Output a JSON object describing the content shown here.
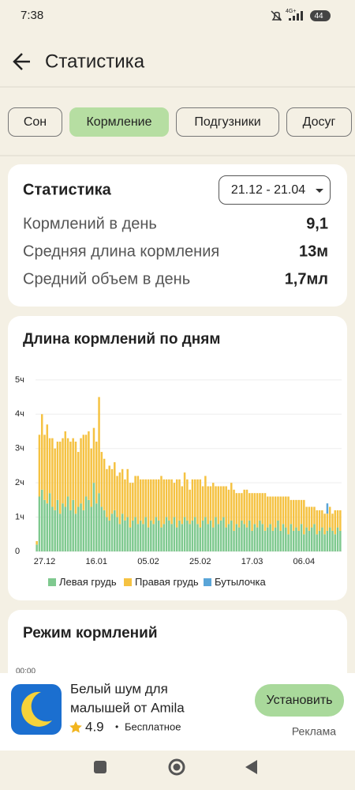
{
  "status_bar": {
    "time": "7:38",
    "network": "4G+",
    "battery": "44"
  },
  "header": {
    "title": "Статистика"
  },
  "tabs": [
    "Сон",
    "Кормление",
    "Подгузники",
    "Досуг"
  ],
  "summary": {
    "title": "Статистика",
    "date_range": "21.12 - 21.04",
    "rows": [
      [
        "Кормлений в день",
        "9,1"
      ],
      [
        "Средняя длина кормления",
        "13м"
      ],
      [
        "Средний объем в день",
        "1,7мл"
      ]
    ]
  },
  "chart_data": {
    "type": "bar",
    "stacked": true,
    "title": "Длина кормлений по дням",
    "categories": [
      null,
      null,
      null,
      "27.12",
      null,
      null,
      null,
      null,
      null,
      null,
      null,
      null,
      null,
      null,
      null,
      null,
      null,
      null,
      null,
      null,
      null,
      null,
      null,
      "16.01",
      null,
      null,
      null,
      null,
      null,
      null,
      null,
      null,
      null,
      null,
      null,
      null,
      null,
      null,
      null,
      null,
      null,
      null,
      null,
      "05.02",
      null,
      null,
      null,
      null,
      null,
      null,
      null,
      null,
      null,
      null,
      null,
      null,
      null,
      null,
      null,
      null,
      null,
      null,
      null,
      "25.02",
      null,
      null,
      null,
      null,
      null,
      null,
      null,
      null,
      null,
      null,
      null,
      null,
      null,
      null,
      null,
      null,
      null,
      null,
      null,
      "17.03",
      null,
      null,
      null,
      null,
      null,
      null,
      null,
      null,
      null,
      null,
      null,
      null,
      null,
      null,
      null,
      null,
      null,
      null,
      null,
      "06.04",
      null,
      null,
      null,
      null,
      null,
      null,
      null,
      null,
      null,
      null,
      null,
      null,
      null,
      null
    ],
    "series": [
      {
        "name": "Левая грудь",
        "color": "#7fc98f",
        "values": [
          0.2,
          1.6,
          1.8,
          1.5,
          1.4,
          1.7,
          1.3,
          1.2,
          1.5,
          1.1,
          1.4,
          1.3,
          1.6,
          1.2,
          1.5,
          1.1,
          1.3,
          1.4,
          1.2,
          1.6,
          1.5,
          1.3,
          2.0,
          1.4,
          1.7,
          1.3,
          1.2,
          1.0,
          0.9,
          1.1,
          1.2,
          1.0,
          0.8,
          1.1,
          0.9,
          1.0,
          0.7,
          0.9,
          1.0,
          0.8,
          0.9,
          0.8,
          1.0,
          0.7,
          0.9,
          0.8,
          1.0,
          0.9,
          0.7,
          0.8,
          1.0,
          0.9,
          0.8,
          1.0,
          0.7,
          0.9,
          0.8,
          1.0,
          0.9,
          0.8,
          0.9,
          1.0,
          0.8,
          0.7,
          0.9,
          1.0,
          0.8,
          0.9,
          0.7,
          1.0,
          0.8,
          0.9,
          1.0,
          0.7,
          0.8,
          0.9,
          0.6,
          0.8,
          0.7,
          0.9,
          0.8,
          0.7,
          0.9,
          0.6,
          0.8,
          0.7,
          0.9,
          0.8,
          0.6,
          0.7,
          0.8,
          0.6,
          0.7,
          0.9,
          0.6,
          0.8,
          0.7,
          0.5,
          0.8,
          0.6,
          0.7,
          0.6,
          0.8,
          0.5,
          0.7,
          0.6,
          0.7,
          0.8,
          0.5,
          0.6,
          0.7,
          0.5,
          0.6,
          0.7,
          0.6,
          0.5,
          0.7,
          0.6
        ]
      },
      {
        "name": "Правая грудь",
        "color": "#f5c242",
        "values": [
          0.1,
          1.8,
          2.2,
          1.9,
          2.3,
          1.6,
          2.0,
          1.8,
          1.7,
          2.1,
          1.9,
          2.2,
          1.7,
          2.0,
          1.8,
          2.1,
          1.6,
          1.9,
          2.2,
          1.8,
          2.0,
          1.7,
          1.6,
          1.8,
          2.8,
          1.6,
          1.5,
          1.4,
          1.6,
          1.3,
          1.4,
          1.2,
          1.5,
          1.3,
          1.2,
          1.4,
          1.3,
          1.1,
          1.2,
          1.4,
          1.2,
          1.3,
          1.1,
          1.4,
          1.2,
          1.3,
          1.1,
          1.2,
          1.5,
          1.3,
          1.1,
          1.2,
          1.3,
          1.0,
          1.4,
          1.2,
          1.1,
          1.3,
          1.2,
          1.0,
          1.2,
          1.1,
          1.3,
          1.4,
          1.0,
          1.2,
          1.1,
          1.0,
          1.3,
          0.9,
          1.1,
          1.0,
          0.9,
          1.2,
          1.0,
          1.1,
          1.2,
          0.9,
          1.0,
          0.8,
          1.0,
          1.1,
          0.8,
          1.1,
          0.9,
          1.0,
          0.8,
          0.9,
          1.1,
          0.9,
          0.8,
          1.0,
          0.9,
          0.7,
          1.0,
          0.8,
          0.9,
          1.1,
          0.7,
          0.9,
          0.8,
          0.9,
          0.7,
          1.0,
          0.6,
          0.7,
          0.6,
          0.5,
          0.7,
          0.6,
          0.5,
          0.6,
          0.5,
          0.6,
          0.5,
          0.7,
          0.5,
          0.6
        ]
      },
      {
        "name": "Бутылочка",
        "color": "#5aa5d8",
        "values": [
          0,
          0,
          0,
          0,
          0,
          0,
          0,
          0,
          0,
          0,
          0,
          0,
          0,
          0,
          0,
          0,
          0,
          0,
          0,
          0,
          0,
          0,
          0,
          0,
          0,
          0,
          0,
          0,
          0,
          0,
          0,
          0,
          0,
          0,
          0,
          0,
          0,
          0,
          0,
          0,
          0,
          0,
          0,
          0,
          0,
          0,
          0,
          0,
          0,
          0,
          0,
          0,
          0,
          0,
          0,
          0,
          0,
          0,
          0,
          0,
          0,
          0,
          0,
          0,
          0,
          0,
          0,
          0,
          0,
          0,
          0,
          0,
          0,
          0,
          0,
          0,
          0,
          0,
          0,
          0,
          0,
          0,
          0,
          0,
          0,
          0,
          0,
          0,
          0,
          0,
          0,
          0,
          0,
          0,
          0,
          0,
          0,
          0,
          0,
          0,
          0,
          0,
          0,
          0,
          0,
          0,
          0,
          0,
          0,
          0,
          0,
          0,
          0.3,
          0,
          0,
          0,
          0,
          0
        ]
      }
    ],
    "ylim": [
      0,
      5.25
    ],
    "yticks": [
      0,
      {
        "value": 1,
        "label": "1ч"
      },
      {
        "value": 2,
        "label": "2ч"
      },
      {
        "value": 3,
        "label": "3ч"
      },
      {
        "value": 4,
        "label": "4ч"
      },
      {
        "value": 5,
        "label": "5ч"
      }
    ],
    "grid": true
  },
  "schedule": {
    "title": "Режим кормлений",
    "first_time": "00:00"
  },
  "ad": {
    "title_lines": [
      "Белый шум для",
      "малышей от Amila"
    ],
    "rating": "4.9",
    "separator": "•",
    "price": "Бесплатное",
    "button": "Установить",
    "label": "Реклама"
  }
}
